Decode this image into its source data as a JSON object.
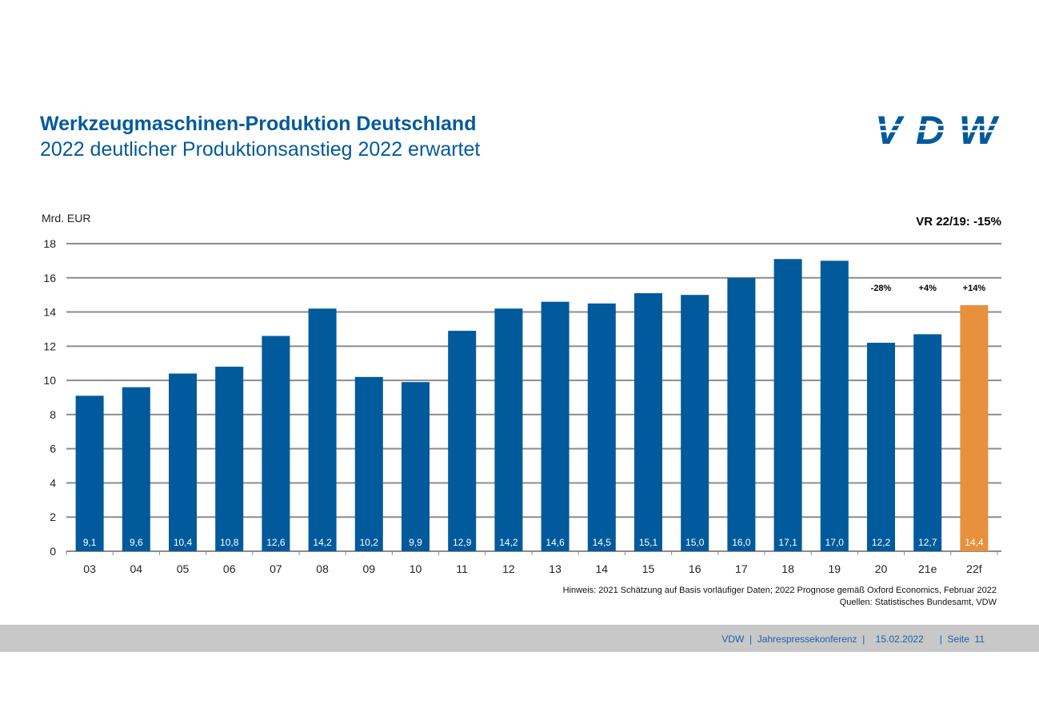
{
  "header": {
    "title": "Werkzeugmaschinen-Produktion Deutschland",
    "subtitle": "2022 deutlicher Produktionsanstieg 2022 erwartet",
    "logo_text": "VDW"
  },
  "chart_data": {
    "type": "bar",
    "ylabel": "Mrd. EUR",
    "ylim": [
      0,
      18
    ],
    "yticks": [
      "0",
      "2",
      "4",
      "6",
      "8",
      "10",
      "12",
      "14",
      "16",
      "18"
    ],
    "grid": true,
    "categories": [
      "03",
      "04",
      "05",
      "06",
      "07",
      "08",
      "09",
      "10",
      "11",
      "12",
      "13",
      "14",
      "15",
      "16",
      "17",
      "18",
      "19",
      "20",
      "21e",
      "22f"
    ],
    "values": [
      9.1,
      9.6,
      10.4,
      10.8,
      12.6,
      14.2,
      10.2,
      9.9,
      12.9,
      14.2,
      14.6,
      14.5,
      15.1,
      15.0,
      16.0,
      17.1,
      17.0,
      12.2,
      12.7,
      14.4
    ],
    "data_labels": [
      "9,1",
      "9,6",
      "10,4",
      "10,8",
      "12,6",
      "14,2",
      "10,2",
      "9,9",
      "12,9",
      "14,2",
      "14,6",
      "14,5",
      "15,1",
      "15,0",
      "16,0",
      "17,1",
      "17,0",
      "12,2",
      "12,7",
      "14,4"
    ],
    "colors": {
      "actual": "#005a9b",
      "forecast": "#e8913c",
      "grid": "#8c8c8c"
    },
    "forecast_category": "22f",
    "annotations": [
      {
        "category": "20",
        "text": "-28%"
      },
      {
        "category": "21e",
        "text": "+4%"
      },
      {
        "category": "22f",
        "text": "+14%"
      }
    ],
    "vr_note": "VR 22/19: -15%"
  },
  "notes": {
    "hinweis": "Hinweis: 2021 Schätzung auf Basis vorläufiger Daten; 2022 Prognose gemäß Oxford Economics, Februar 2022",
    "quellen": "Quellen: Statistisches Bundesamt, VDW"
  },
  "footer": {
    "text": "VDW  |  Jahrespressekonferenz  |    15.02.2022      |  Seite  11"
  }
}
